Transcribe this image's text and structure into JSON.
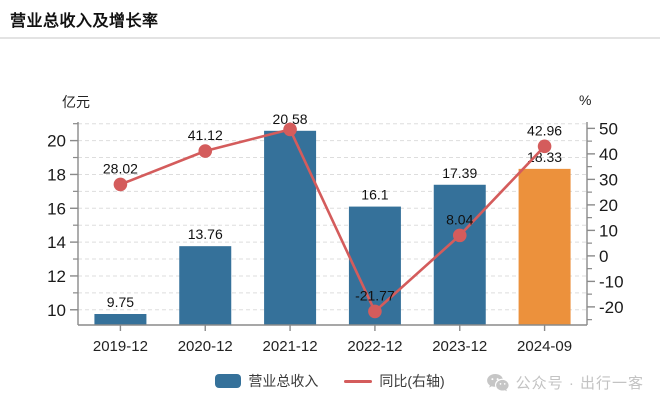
{
  "title": "营业总收入及增长率",
  "legend": {
    "bar_label": "营业总收入",
    "line_label": "同比(右轴)"
  },
  "footer": {
    "text": "公众号 · 出行一客"
  },
  "colors": {
    "bar_blue": "#35719A",
    "bar_orange": "#EC913C",
    "line_red": "#D45C5C",
    "grid": "#dddddd",
    "axis": "#8a8a8a",
    "tick_text": "#1a1a1a",
    "label_text": "#111111",
    "x_text": "#222222",
    "footer_grey": "#c3c3c3"
  },
  "chart_data": {
    "type": "bar",
    "title": "营业总收入及增长率",
    "categories": [
      "2019-12",
      "2020-12",
      "2021-12",
      "2022-12",
      "2023-12",
      "2024-09"
    ],
    "series": [
      {
        "name": "营业总收入",
        "type": "bar",
        "yaxis": "left",
        "values": [
          9.75,
          13.76,
          20.58,
          16.1,
          17.39,
          18.33
        ],
        "labels": [
          "9.75",
          "13.76",
          "20.58",
          "16.1",
          "17.39",
          "18.33"
        ],
        "colors": [
          "#35719A",
          "#35719A",
          "#35719A",
          "#35719A",
          "#35719A",
          "#EC913C"
        ]
      },
      {
        "name": "同比(右轴)",
        "type": "line",
        "yaxis": "right",
        "values": [
          28.02,
          41.12,
          49.6,
          -21.77,
          8.04,
          42.96
        ],
        "labels": [
          "28.02",
          "41.12",
          "",
          "-21.77",
          "8.04",
          "42.96"
        ],
        "color": "#D45C5C"
      }
    ],
    "left_axis": {
      "unit": "亿元",
      "ticks": [
        10,
        12,
        14,
        16,
        18,
        20
      ],
      "minor_ticks": [
        11,
        13,
        15,
        17,
        19,
        21
      ],
      "range": [
        9.1,
        21.1
      ]
    },
    "right_axis": {
      "unit": "%",
      "ticks": [
        -20,
        -10,
        0,
        10,
        20,
        30,
        40,
        50
      ],
      "minor_ticks": [
        -25,
        -15,
        -5,
        5,
        15,
        25,
        35,
        45
      ],
      "range": [
        -27.1,
        52.5
      ]
    },
    "grid": true,
    "grid_step_left_units": 1,
    "legend_position": "bottom"
  }
}
